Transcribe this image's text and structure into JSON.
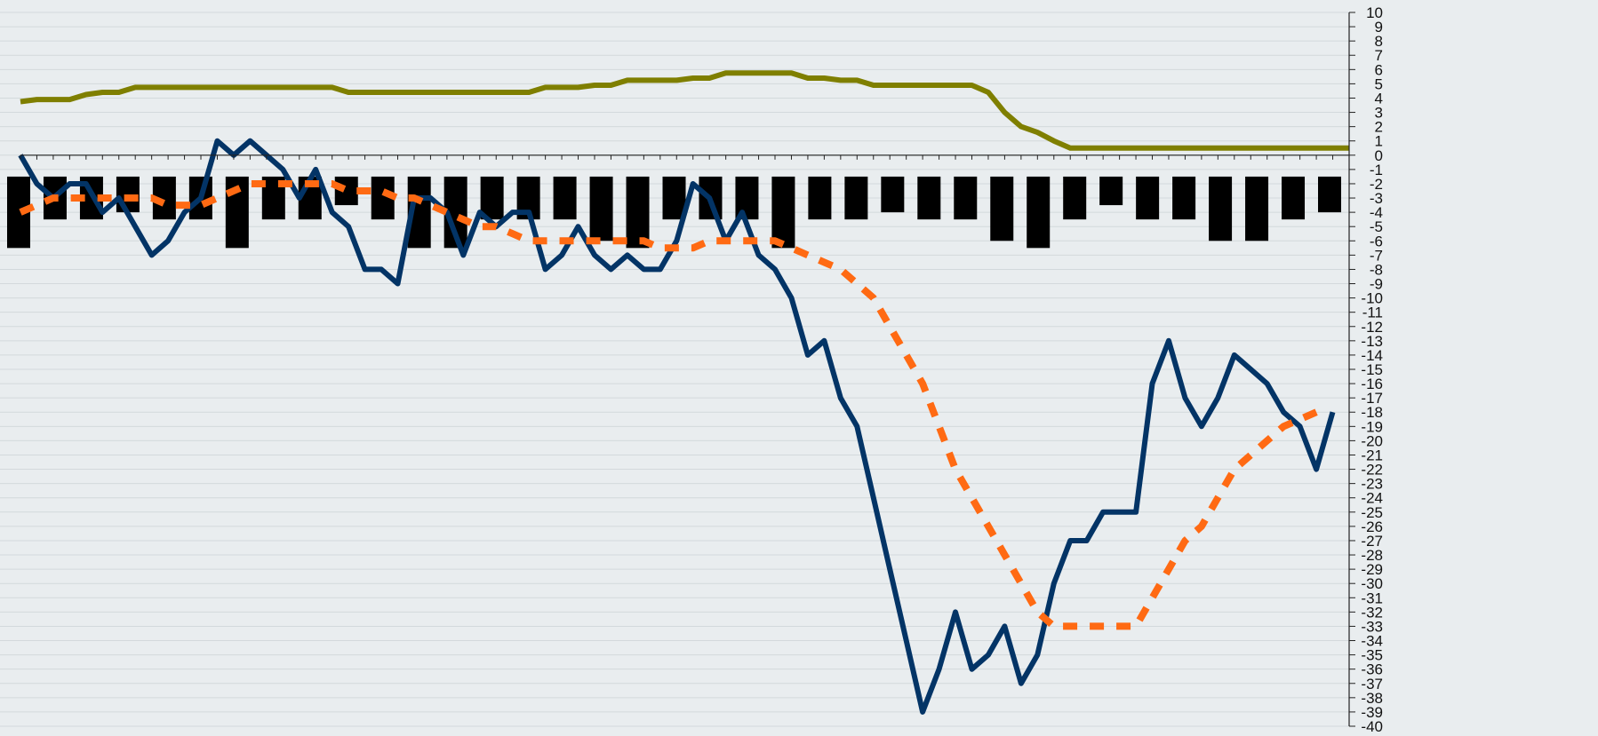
{
  "chart_data": {
    "type": "line",
    "title": "",
    "xlabel": "",
    "ylabel": "",
    "ylim": [
      -40,
      10
    ],
    "y_ticks": [
      10,
      9,
      8,
      7,
      6,
      5,
      4,
      3,
      2,
      1,
      0,
      -1,
      -2,
      -3,
      -4,
      -5,
      -6,
      -7,
      -8,
      -9,
      -10,
      -11,
      -12,
      -13,
      -14,
      -15,
      -16,
      -17,
      -18,
      -19,
      -20,
      -21,
      -22,
      -23,
      -24,
      -25,
      -26,
      -27,
      -28,
      -29,
      -30,
      -31,
      -32,
      -33,
      -34,
      -35,
      -36,
      -37,
      -38,
      -39,
      -40
    ],
    "y_tick_labels": [
      "10",
      "9",
      "8",
      "7",
      "6",
      "5",
      "4",
      "3",
      "2",
      "1",
      "0",
      "-1",
      "-2",
      "-3",
      "-4",
      "-5",
      "-6",
      "-7",
      "-8",
      "-9",
      "-10",
      "-11",
      "-12",
      "-13",
      "-14",
      "-15",
      "-16",
      "-17",
      "-18",
      "-19",
      "-20",
      "-21",
      "-22",
      "-23",
      "-24",
      "-25",
      "-26",
      "-27",
      "-28",
      "-29",
      "-30",
      "-31",
      "-32",
      "-33",
      "-34",
      "-35",
      "-36",
      "-37",
      "-38",
      "-39",
      "-40"
    ],
    "y_axis_position": "right",
    "grid": true,
    "legend": "none",
    "n_points": 82,
    "series": [
      {
        "kind": "line",
        "color": "#7f7f00",
        "style": "solid",
        "values": [
          3.75,
          3.9,
          3.9,
          3.9,
          4.25,
          4.4,
          4.4,
          4.75,
          4.75,
          4.75,
          4.75,
          4.75,
          4.75,
          4.75,
          4.75,
          4.75,
          4.75,
          4.75,
          4.75,
          4.75,
          4.4,
          4.4,
          4.4,
          4.4,
          4.4,
          4.4,
          4.4,
          4.4,
          4.4,
          4.4,
          4.4,
          4.4,
          4.75,
          4.75,
          4.75,
          4.9,
          4.9,
          5.25,
          5.25,
          5.25,
          5.25,
          5.4,
          5.4,
          5.75,
          5.75,
          5.75,
          5.75,
          5.75,
          5.4,
          5.4,
          5.25,
          5.25,
          4.9,
          4.9,
          4.9,
          4.9,
          4.9,
          4.9,
          4.9,
          4.4,
          3.0,
          2.0,
          1.6,
          1.0,
          0.5,
          0.5,
          0.5,
          0.5,
          0.5,
          0.5,
          0.5,
          0.5,
          0.5,
          0.5,
          0.5,
          0.5,
          0.5,
          0.5,
          0.5,
          0.5,
          0.5,
          0.5
        ]
      },
      {
        "kind": "line",
        "color": "#033466",
        "style": "solid",
        "values": [
          0,
          -2,
          -3,
          -2,
          -2,
          -4,
          -3,
          -5,
          -7,
          -6,
          -4,
          -3,
          1,
          0,
          1,
          0,
          -1,
          -3,
          -1,
          -4,
          -5,
          -8,
          -8,
          -9,
          -3,
          -3,
          -4,
          -7,
          -4,
          -5,
          -4,
          -4,
          -8,
          -7,
          -5,
          -7,
          -8,
          -7,
          -8,
          -8,
          -6,
          -2,
          -3,
          -6,
          -4,
          -7,
          -8,
          -10,
          -14,
          -13,
          -17,
          -19,
          -24,
          -29,
          -34,
          -39,
          -36,
          -32,
          -36,
          -35,
          -33,
          -37,
          -35,
          -30,
          -27,
          -27,
          -25,
          -25,
          -25,
          -16,
          -13,
          -17,
          -19,
          -17,
          -14,
          -15,
          -16,
          -18,
          -19,
          -22,
          -18
        ]
      },
      {
        "kind": "line",
        "color": "#ff6a13",
        "style": "dashed",
        "values": [
          -4,
          -3.5,
          -3,
          -3,
          -3,
          -3,
          -3,
          -3,
          -3,
          -3.5,
          -3.5,
          -3.5,
          -3,
          -2.5,
          -2,
          -2,
          -2,
          -2,
          -2,
          -2,
          -2.5,
          -2.5,
          -2.5,
          -3,
          -3,
          -3.5,
          -4,
          -4.5,
          -5,
          -5,
          -5.5,
          -6,
          -6,
          -6,
          -6,
          -6,
          -6,
          -6,
          -6,
          -6.5,
          -6.5,
          -6.5,
          -6,
          -6,
          -6,
          -6,
          -6,
          -6.5,
          -7,
          -7.5,
          -8,
          -9,
          -10,
          -12,
          -14,
          -16,
          -19,
          -22,
          -24,
          -26,
          -28,
          -30,
          -32,
          -33,
          -33,
          -33,
          -33,
          -33,
          -33,
          -31,
          -29,
          -27,
          -26,
          -24,
          -22,
          -21,
          -20,
          -19,
          -18.5,
          -18
        ]
      },
      {
        "kind": "bar",
        "color": "#000000",
        "baseline": -1.5,
        "values": [
          -6.5,
          -4.5,
          -4.5,
          -4,
          -4.5,
          -4.5,
          -6.5,
          -4.5,
          -4.5,
          -3.5,
          -4.5,
          -6.5,
          -6.5,
          -4.5,
          -4.5,
          -4.5,
          -6,
          -6.5,
          -4.5,
          -4.5,
          -4.5,
          -6.5,
          -4.5,
          -4.5,
          -4,
          -4.5,
          -4.5,
          -6,
          -6.5,
          -4.5,
          -3.5,
          -4.5,
          -4.5,
          -6,
          -6,
          -4.5,
          -4
        ]
      }
    ]
  }
}
